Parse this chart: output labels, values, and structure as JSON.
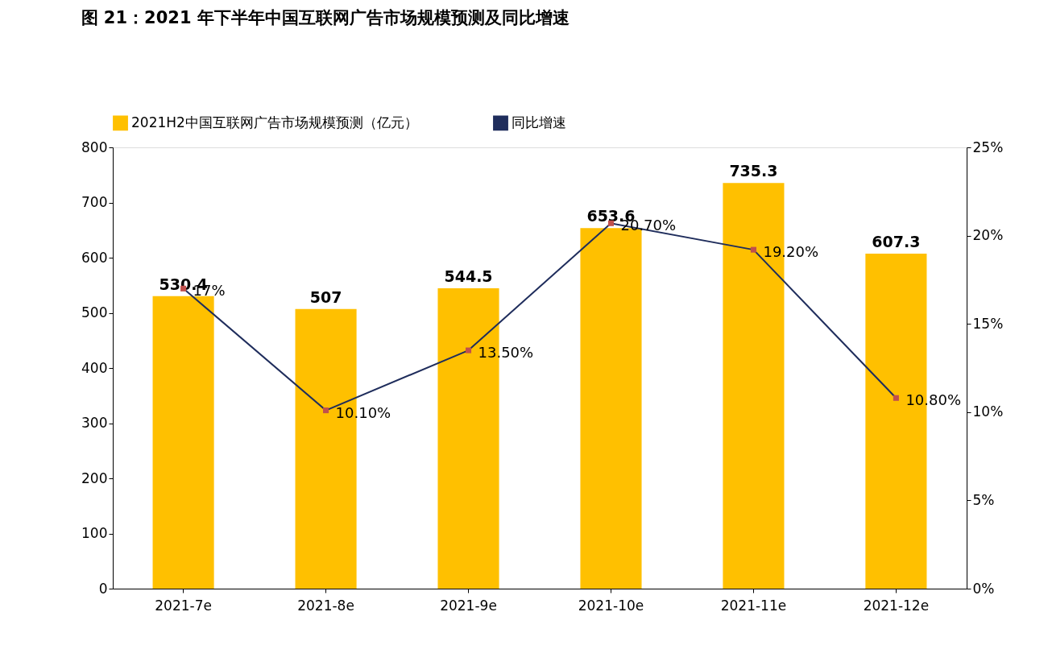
{
  "chart_data": {
    "type": "bar",
    "title": "图 21：2021 年下半年中国互联网广告市场规模预测及同比增速",
    "categories": [
      "2021-7e",
      "2021-8e",
      "2021-9e",
      "2021-10e",
      "2021-11e",
      "2021-12e"
    ],
    "series": [
      {
        "name": "2021H2中国互联网广告市场规模预测（亿元）",
        "color": "#ffc000",
        "values": [
          530.4,
          507,
          544.5,
          653.6,
          735.3,
          607.3
        ],
        "value_labels": [
          "530.4",
          "507",
          "544.5",
          "653.6",
          "735.3",
          "607.3"
        ]
      },
      {
        "name": "同比增速",
        "type": "line",
        "axis": "y2",
        "color": "#1f2d5c",
        "colors": [
          "#c0504d",
          "#c0504d",
          "#c0504d",
          "#c0504d",
          "#c0504d",
          "#c0504d"
        ],
        "values": [
          17,
          10.1,
          13.5,
          20.7,
          19.2,
          10.8
        ],
        "value_labels": [
          "17%",
          "10.10%",
          "13.50%",
          "20.70%",
          "19.20%",
          "10.80%"
        ]
      }
    ],
    "ylim": [
      0,
      800
    ],
    "yticks": [
      0,
      100,
      200,
      300,
      400,
      500,
      600,
      700,
      800
    ],
    "y2lim": [
      0,
      25
    ],
    "y2ticks": [
      {
        "value": 0,
        "label": "0%"
      },
      {
        "value": 5,
        "label": "5%"
      },
      {
        "value": 10,
        "label": "10%"
      },
      {
        "value": 15,
        "label": "15%"
      },
      {
        "value": 20,
        "label": "20%"
      },
      {
        "value": 25,
        "label": "25%"
      }
    ],
    "marker": "square",
    "grid": false,
    "legend": "top"
  }
}
